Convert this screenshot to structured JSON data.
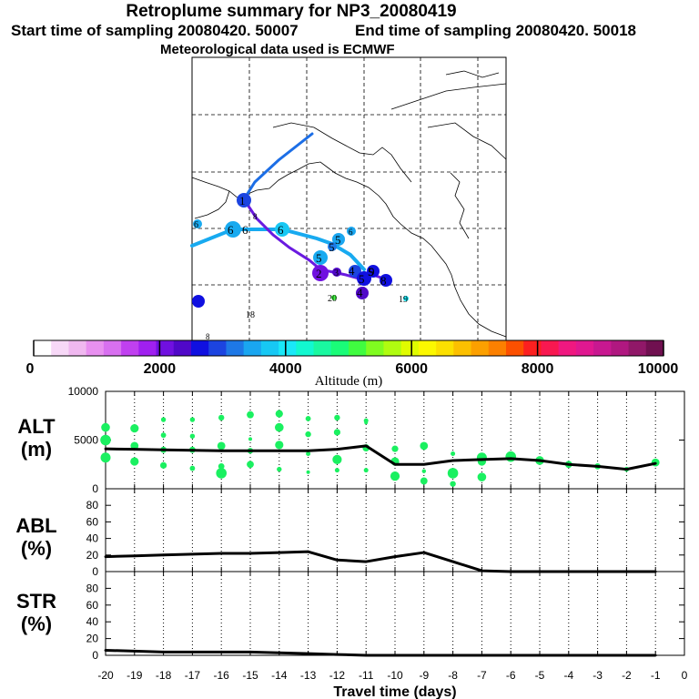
{
  "header": {
    "title": "Retroplume summary for NP3_20080419",
    "start": "Start time of sampling 20080420. 50007",
    "end": "End time of sampling 20080420. 50018",
    "met": "Meteorological data used is ECMWF"
  },
  "colorbar": {
    "colors": [
      "#ffffff",
      "#f7d8f7",
      "#f0b8f0",
      "#e890f0",
      "#d870f0",
      "#c040f0",
      "#a020f0",
      "#7010e0",
      "#5008c8",
      "#1010e0",
      "#1c44e0",
      "#1e78e6",
      "#1aa6f0",
      "#17c8f4",
      "#1ae8f8",
      "#12f8d0",
      "#1af8a0",
      "#1afc78",
      "#40fc40",
      "#80fc20",
      "#b0fc10",
      "#e0fc00",
      "#fcf800",
      "#fce000",
      "#fcc000",
      "#fca000",
      "#fc8000",
      "#fc5000",
      "#fc2020",
      "#f81850",
      "#f01880",
      "#e01890",
      "#c81890",
      "#b01880",
      "#901868",
      "#701050"
    ],
    "ticks": [
      0,
      2000,
      4000,
      6000,
      8000,
      10000
    ],
    "tick_labels": [
      "0",
      "2000",
      "4000",
      "6000",
      "8000",
      "10000"
    ],
    "label": "Altitude (m)"
  },
  "map": {
    "labels": [
      "1",
      "6",
      "6",
      "6",
      "6",
      "5",
      "5",
      "5",
      "5",
      "2",
      "3",
      "4",
      "5",
      "6",
      "4",
      "8",
      "9",
      "20",
      "19",
      "18",
      "8",
      "8"
    ]
  },
  "chart_data": [
    {
      "type": "line",
      "title": "ALT",
      "ylabel": "ALT (m)",
      "ylabel_top": "ALT",
      "ylabel_bottom": "(m)",
      "ylim": [
        0,
        10000
      ],
      "yticks": [
        0,
        5000,
        10000
      ],
      "ytick_labels": [
        "0",
        "5000",
        "10000"
      ],
      "x": [
        -20,
        -19,
        -18,
        -17,
        -16,
        -15,
        -14,
        -13,
        -12,
        -11,
        -10,
        -9,
        -8,
        -7,
        -6,
        -5,
        -4,
        -3,
        -2,
        -1
      ],
      "values": [
        4100,
        4050,
        4000,
        3950,
        3900,
        3900,
        3900,
        3900,
        4050,
        4400,
        2500,
        2500,
        2900,
        3000,
        3100,
        2900,
        2500,
        2300,
        2000,
        2600
      ],
      "scatter": [
        {
          "x": -20,
          "y": 6300
        },
        {
          "x": -20,
          "y": 5000
        },
        {
          "x": -20,
          "y": 3200
        },
        {
          "x": -19,
          "y": 6200
        },
        {
          "x": -19,
          "y": 4400
        },
        {
          "x": -19,
          "y": 2800
        },
        {
          "x": -18,
          "y": 7100
        },
        {
          "x": -18,
          "y": 5500
        },
        {
          "x": -18,
          "y": 4000
        },
        {
          "x": -18,
          "y": 2400
        },
        {
          "x": -17,
          "y": 7100
        },
        {
          "x": -17,
          "y": 5400
        },
        {
          "x": -17,
          "y": 4000
        },
        {
          "x": -17,
          "y": 2100
        },
        {
          "x": -16,
          "y": 7300
        },
        {
          "x": -16,
          "y": 4400
        },
        {
          "x": -16,
          "y": 2300
        },
        {
          "x": -16,
          "y": 1600
        },
        {
          "x": -15,
          "y": 7600
        },
        {
          "x": -15,
          "y": 5100
        },
        {
          "x": -15,
          "y": 3900
        },
        {
          "x": -15,
          "y": 2500
        },
        {
          "x": -14,
          "y": 7700
        },
        {
          "x": -14,
          "y": 6300
        },
        {
          "x": -14,
          "y": 4500
        },
        {
          "x": -14,
          "y": 2000
        },
        {
          "x": -13,
          "y": 7200
        },
        {
          "x": -13,
          "y": 5600
        },
        {
          "x": -13,
          "y": 3600
        },
        {
          "x": -13,
          "y": 1700
        },
        {
          "x": -12,
          "y": 7300
        },
        {
          "x": -12,
          "y": 5800
        },
        {
          "x": -12,
          "y": 3000
        },
        {
          "x": -12,
          "y": 1900
        },
        {
          "x": -11,
          "y": 7000
        },
        {
          "x": -11,
          "y": 6800
        },
        {
          "x": -11,
          "y": 4200
        },
        {
          "x": -11,
          "y": 1900
        },
        {
          "x": -10,
          "y": 4100
        },
        {
          "x": -10,
          "y": 2800
        },
        {
          "x": -10,
          "y": 1300
        },
        {
          "x": -9,
          "y": 4400
        },
        {
          "x": -9,
          "y": 1800
        },
        {
          "x": -9,
          "y": 800
        },
        {
          "x": -8,
          "y": 3600
        },
        {
          "x": -8,
          "y": 1600
        },
        {
          "x": -8,
          "y": 500
        },
        {
          "x": -7,
          "y": 3200
        },
        {
          "x": -7,
          "y": 2800
        },
        {
          "x": -7,
          "y": 1200
        },
        {
          "x": -6,
          "y": 3300
        },
        {
          "x": -5,
          "y": 2900
        },
        {
          "x": -4,
          "y": 2500
        },
        {
          "x": -3,
          "y": 2300
        },
        {
          "x": -2,
          "y": 2000
        },
        {
          "x": -1,
          "y": 2700
        }
      ]
    },
    {
      "type": "line",
      "title": "ABL",
      "ylabel": "ABL (%)",
      "ylabel_top": "ABL",
      "ylabel_bottom": "(%)",
      "ylim": [
        0,
        100
      ],
      "yticks": [
        0,
        20,
        40,
        60,
        80
      ],
      "ytick_labels": [
        "0",
        "20",
        "40",
        "60",
        "80"
      ],
      "x": [
        -20,
        -19,
        -18,
        -17,
        -16,
        -15,
        -14,
        -13,
        -12,
        -11,
        -10,
        -9,
        -8,
        -7,
        -6,
        -5,
        -4,
        -3,
        -2,
        -1
      ],
      "values": [
        18,
        19,
        20,
        21,
        22,
        22,
        23,
        24,
        14,
        12,
        18,
        23,
        12,
        1,
        0,
        0,
        0,
        0,
        0,
        0
      ]
    },
    {
      "type": "line",
      "title": "STR",
      "ylabel": "STR (%)",
      "ylabel_top": "STR",
      "ylabel_bottom": "(%)",
      "ylim": [
        0,
        100
      ],
      "yticks": [
        0,
        20,
        40,
        60,
        80
      ],
      "ytick_labels": [
        "0",
        "20",
        "40",
        "60",
        "80"
      ],
      "x": [
        -20,
        -19,
        -18,
        -17,
        -16,
        -15,
        -14,
        -13,
        -12,
        -11,
        -10,
        -9,
        -8,
        -7,
        -6,
        -5,
        -4,
        -3,
        -2,
        -1
      ],
      "values": [
        6,
        5,
        4,
        4,
        4,
        4,
        3,
        2,
        1,
        0,
        0,
        0,
        0,
        0,
        0,
        0,
        0,
        0,
        0,
        0
      ]
    }
  ],
  "xaxis": {
    "label": "Travel time (days)",
    "ticks": [
      -20,
      -19,
      -18,
      -17,
      -16,
      -15,
      -14,
      -13,
      -12,
      -11,
      -10,
      -9,
      -8,
      -7,
      -6,
      -5,
      -4,
      -3,
      -2,
      -1,
      0
    ],
    "tick_labels": [
      "-20",
      "-19",
      "-18",
      "-17",
      "-16",
      "-15",
      "-14",
      "-13",
      "-12",
      "-11",
      "-10",
      "-9",
      "-8",
      "-7",
      "-6",
      "-5",
      "-4",
      "-3",
      "-2",
      "-1",
      "0"
    ]
  },
  "colors": {
    "scatter": "#1af060",
    "line": "#000000"
  }
}
